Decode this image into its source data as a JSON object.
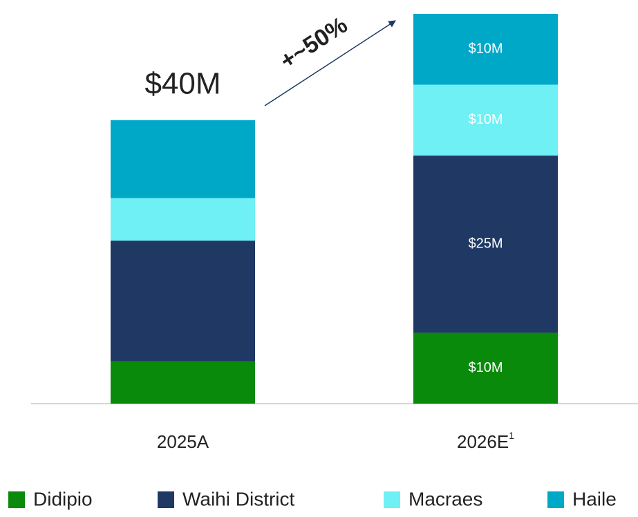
{
  "chart_data": {
    "type": "stacked_bar",
    "categories": [
      "2025A",
      "2026E"
    ],
    "footnote_marker": "1",
    "total_label": "$40M",
    "growth_label": "+~50%",
    "ylim": [
      0,
      55
    ],
    "series": [
      {
        "name": "Didipio",
        "color": "#0a8a0a",
        "values": [
          6,
          10
        ],
        "value_labels": [
          null,
          "$10M"
        ]
      },
      {
        "name": "Waihi District",
        "color": "#1f3864",
        "values": [
          17,
          25
        ],
        "value_labels": [
          null,
          "$25M"
        ]
      },
      {
        "name": "Macraes",
        "color": "#6ff0f5",
        "values": [
          6,
          10
        ],
        "value_labels": [
          null,
          "$10M"
        ]
      },
      {
        "name": "Haile",
        "color": "#00a8c8",
        "values": [
          11,
          10
        ],
        "value_labels": [
          null,
          "$10M"
        ]
      }
    ]
  }
}
